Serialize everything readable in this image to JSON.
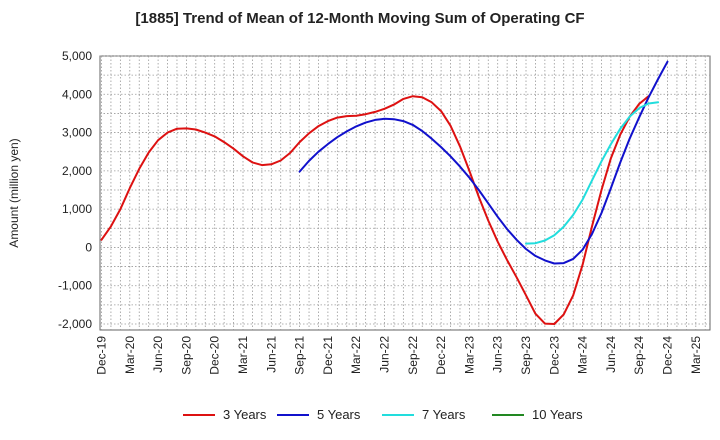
{
  "chart_data": {
    "type": "line",
    "title": "[1885]  Trend of Mean of 12-Month Moving Sum of Operating CF",
    "xlabel": "",
    "ylabel": "Amount (million yen)",
    "ylim": [
      -2000,
      5000
    ],
    "y_ticks": [
      5000,
      4000,
      3000,
      2000,
      1000,
      0,
      -1000,
      -2000
    ],
    "y_tick_labels": [
      "5,000",
      "4,000",
      "3,000",
      "2,000",
      "1,000",
      "0",
      "-1,000",
      "-2,000"
    ],
    "x_tick_labels": [
      "Dec-19",
      "Mar-20",
      "Jun-20",
      "Sep-20",
      "Dec-20",
      "Mar-21",
      "Jun-21",
      "Sep-21",
      "Dec-21",
      "Mar-22",
      "Jun-22",
      "Sep-22",
      "Dec-22",
      "Mar-23",
      "Jun-23",
      "Sep-23",
      "Dec-23",
      "Mar-24",
      "Jun-24",
      "Sep-24",
      "Dec-24",
      "Mar-25"
    ],
    "grid": true,
    "legend_position": "bottom",
    "series": [
      {
        "name": "3 Years",
        "color": "#dd1111",
        "start_month_index": 0,
        "values": [
          200,
          550,
          1000,
          1550,
          2050,
          2480,
          2800,
          3000,
          3100,
          3110,
          3080,
          3000,
          2900,
          2750,
          2580,
          2380,
          2220,
          2150,
          2170,
          2270,
          2470,
          2750,
          2980,
          3170,
          3300,
          3390,
          3430,
          3440,
          3480,
          3540,
          3620,
          3730,
          3880,
          3950,
          3920,
          3790,
          3560,
          3180,
          2640,
          2000,
          1320,
          700,
          150,
          -330,
          -780,
          -1250,
          -1730,
          -1990,
          -2000,
          -1750,
          -1250,
          -450,
          550,
          1500,
          2330,
          2950,
          3420,
          3750,
          3950
        ]
      },
      {
        "name": "5 Years",
        "color": "#1111cc",
        "start_month_index": 21,
        "values": [
          1980,
          2260,
          2500,
          2700,
          2880,
          3030,
          3160,
          3260,
          3330,
          3360,
          3350,
          3300,
          3200,
          3040,
          2840,
          2620,
          2380,
          2110,
          1820,
          1500,
          1150,
          800,
          480,
          200,
          -40,
          -220,
          -340,
          -420,
          -410,
          -300,
          -60,
          350,
          900,
          1550,
          2220,
          2850,
          3400,
          3920,
          4400,
          4850
        ]
      },
      {
        "name": "7 Years",
        "color": "#22dddd",
        "start_month_index": 45,
        "values": [
          100,
          110,
          180,
          320,
          540,
          850,
          1250,
          1750,
          2250,
          2700,
          3100,
          3420,
          3640,
          3760,
          3790
        ]
      },
      {
        "name": "10 Years",
        "color": "#228822",
        "start_month_index": 0,
        "values": []
      }
    ]
  }
}
